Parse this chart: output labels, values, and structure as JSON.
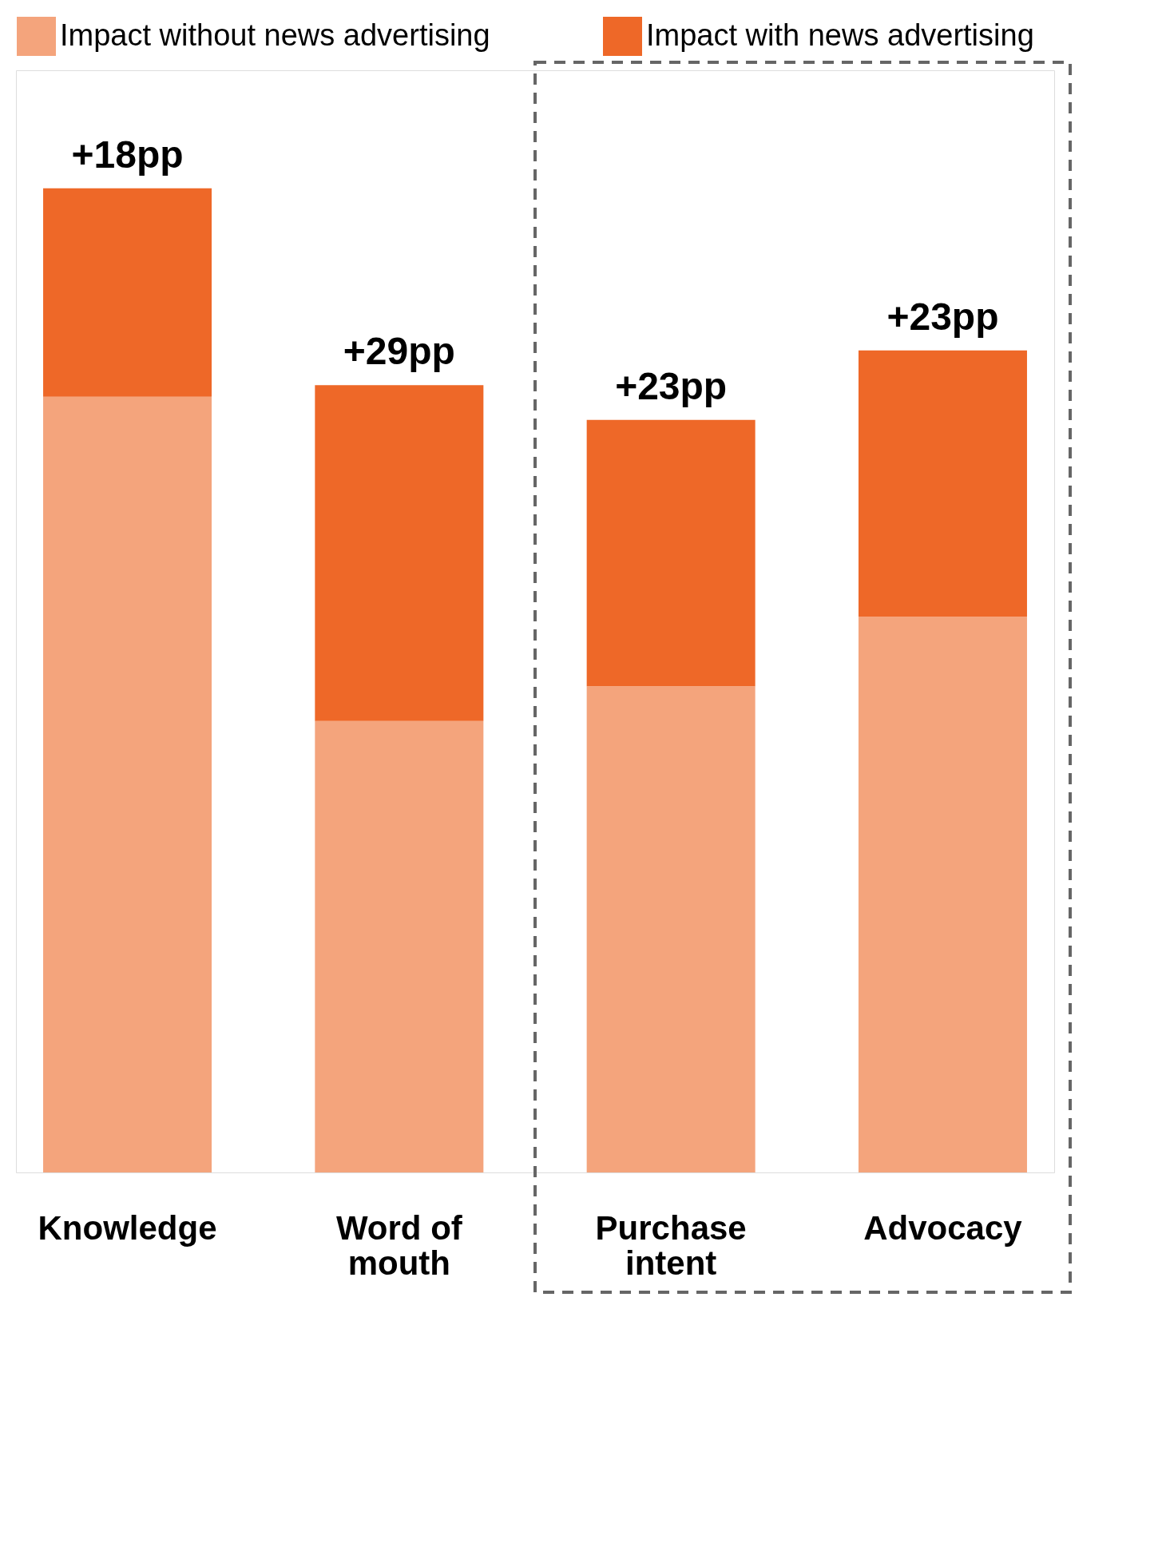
{
  "chart_data": {
    "type": "bar",
    "stacked": true,
    "categories": [
      "Knowledge",
      "Word of mouth",
      "Purchase intent",
      "Advocacy"
    ],
    "series": [
      {
        "name": "Impact without news advertising",
        "color": "#f4a47c",
        "values": [
          67,
          39,
          42,
          48
        ]
      },
      {
        "name": "Impact with news advertising",
        "color": "#ee6828",
        "values": [
          18,
          29,
          23,
          23
        ],
        "value_labels": [
          "+18pp",
          "+29pp",
          "+23pp",
          "+23pp"
        ]
      }
    ],
    "tick_labels": "x",
    "legend": "top"
  }
}
